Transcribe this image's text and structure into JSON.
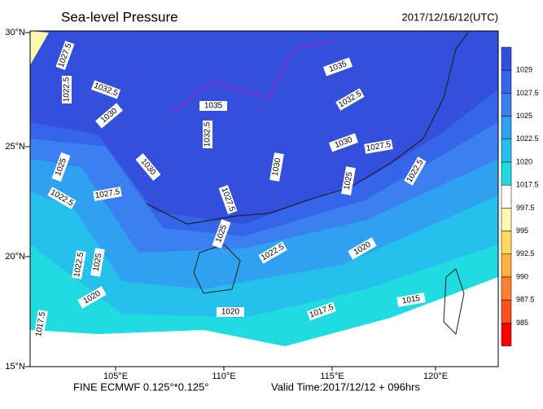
{
  "header": {
    "title": "Sea-level Pressure",
    "time": "2017/12/16/12(UTC)"
  },
  "map": {
    "lat_labels": [
      "30°N",
      "25°N",
      "20°N",
      "15°N"
    ],
    "lon_labels": [
      "105°E",
      "110°E",
      "115°E",
      "120°E"
    ],
    "contour_labels": [
      "1027.5",
      "1022.5",
      "1032.5",
      "1030",
      "1035",
      "1035",
      "1032.5",
      "1032.5",
      "1030",
      "1027.5",
      "1025",
      "1030",
      "1030",
      "1022.5",
      "1027.5",
      "1027.5",
      "1025",
      "1022.5",
      "1025",
      "1022.5",
      "1020",
      "1022.5",
      "1025",
      "1020",
      "1020",
      "1017.5",
      "1017.5",
      "1015"
    ]
  },
  "colorbar": {
    "labels": [
      "1029",
      "1027.5",
      "1025",
      "1022.5",
      "1020",
      "1017.5",
      "997.5",
      "995",
      "992.5",
      "990",
      "987.5",
      "985"
    ],
    "colors": [
      "#3050e0",
      "#3565e8",
      "#3a80f0",
      "#30a0f0",
      "#25c0ec",
      "#20dce0",
      "#ffffff",
      "#fff6b0",
      "#ffd860",
      "#ffb040",
      "#ff8030",
      "#ff5020",
      "#ff0000"
    ]
  },
  "footer": {
    "model": "FINE ECMWF 0.125°*0.125°",
    "valid": "Valid Time:2017/12/12 + 096hrs"
  }
}
